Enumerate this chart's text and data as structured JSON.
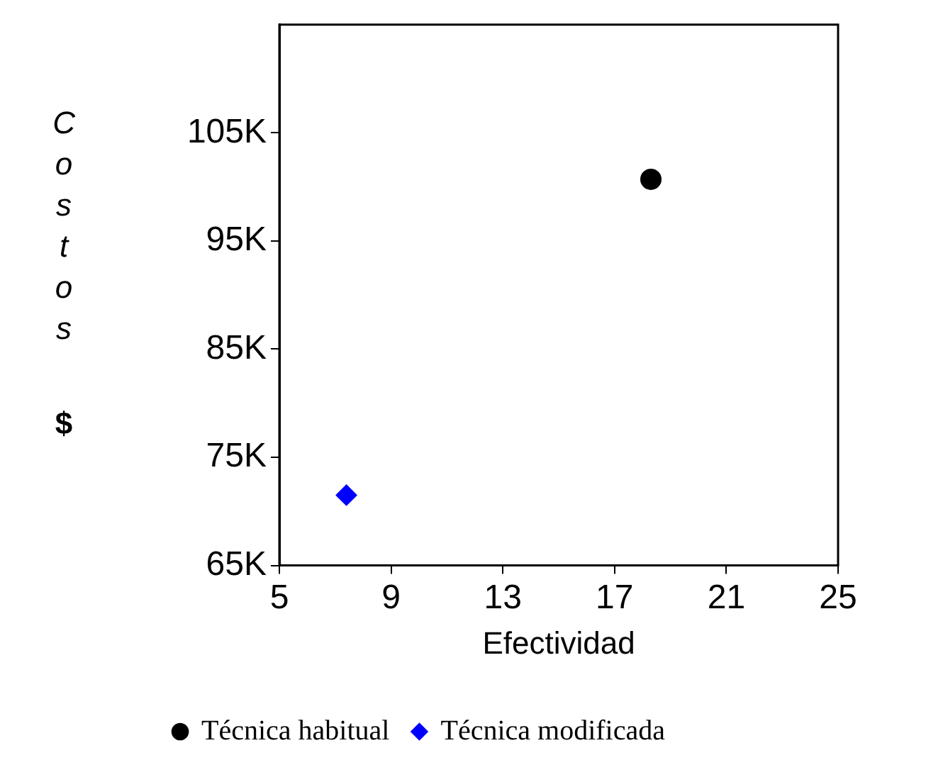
{
  "chart_data": {
    "type": "scatter",
    "xlabel": "Efectividad",
    "ylabel": "Costos $",
    "xlim": [
      5,
      25
    ],
    "xticks": [
      5,
      9,
      13,
      17,
      21,
      25
    ],
    "ylim": [
      65000,
      115000
    ],
    "yticks": [
      {
        "value": 65000,
        "label": "65K"
      },
      {
        "value": 75000,
        "label": "75K"
      },
      {
        "value": 85000,
        "label": "85K"
      },
      {
        "value": 95000,
        "label": "95K"
      },
      {
        "value": 105000,
        "label": "105K"
      }
    ],
    "grid": false,
    "legend": "bottom",
    "series": [
      {
        "name": "Técnica habitual",
        "color": "#000000",
        "marker": "circle",
        "x": [
          18.3
        ],
        "values": [
          100700
        ]
      },
      {
        "name": "Técnica modificada",
        "color": "#0000ff",
        "marker": "diamond",
        "x": [
          7.4
        ],
        "values": [
          71500
        ]
      }
    ]
  }
}
